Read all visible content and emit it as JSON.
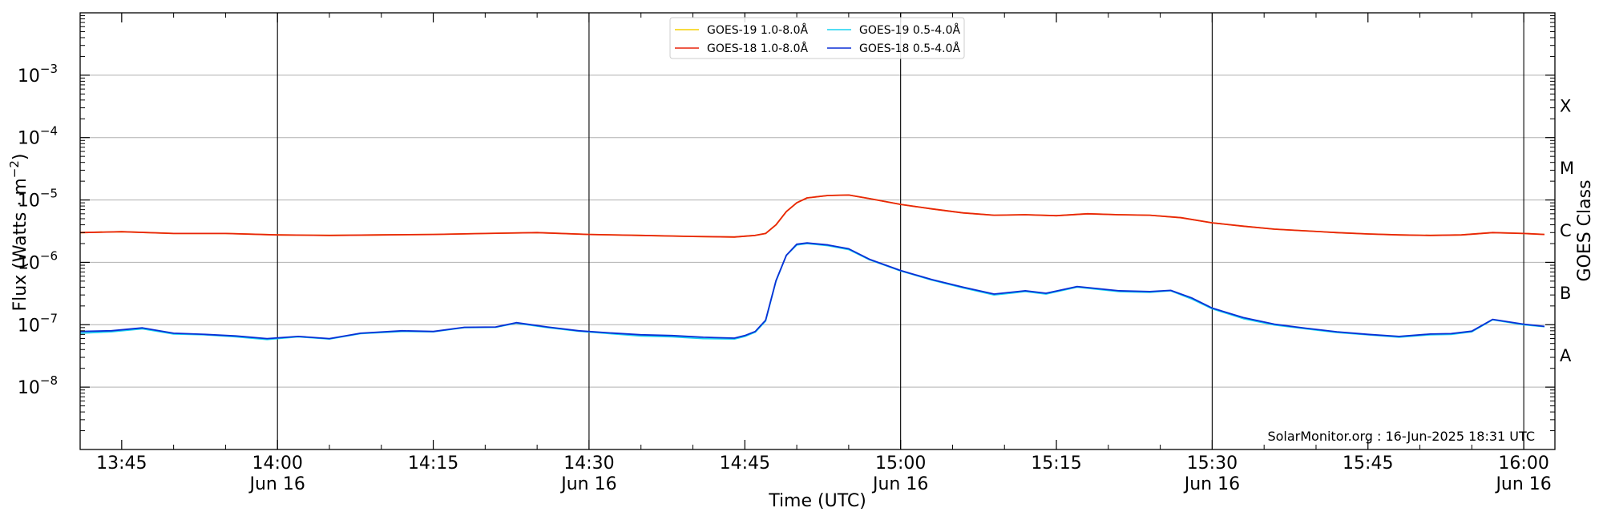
{
  "chart_data": {
    "type": "line",
    "title": "",
    "xlabel": "Time (UTC)",
    "ylabel": "Flux (Watts · m⁻²)",
    "y2label": "GOES Class",
    "yscale": "log",
    "ylim": [
      1e-09,
      0.01
    ],
    "xlim": [
      "13:41",
      "16:03"
    ],
    "grid": "horizontal at decades",
    "legend_position": "upper-center",
    "x_ticks": [
      {
        "t": "13:45",
        "label": "13:45",
        "sub": ""
      },
      {
        "t": "14:00",
        "label": "14:00",
        "sub": "Jun 16"
      },
      {
        "t": "14:15",
        "label": "14:15",
        "sub": ""
      },
      {
        "t": "14:30",
        "label": "14:30",
        "sub": "Jun 16"
      },
      {
        "t": "14:45",
        "label": "14:45",
        "sub": ""
      },
      {
        "t": "15:00",
        "label": "15:00",
        "sub": "Jun 16"
      },
      {
        "t": "15:15",
        "label": "15:15",
        "sub": ""
      },
      {
        "t": "15:30",
        "label": "15:30",
        "sub": "Jun 16"
      },
      {
        "t": "15:45",
        "label": "15:45",
        "sub": ""
      },
      {
        "t": "16:00",
        "label": "16:00",
        "sub": "Jun 16"
      }
    ],
    "vertical_lines": [
      "14:00",
      "14:30",
      "15:00",
      "15:30",
      "16:00"
    ],
    "y_ticks": [
      {
        "v": 0.001,
        "base": "10",
        "exp": "−3"
      },
      {
        "v": 0.0001,
        "base": "10",
        "exp": "−4"
      },
      {
        "v": 1e-05,
        "base": "10",
        "exp": "−5"
      },
      {
        "v": 1e-06,
        "base": "10",
        "exp": "−6"
      },
      {
        "v": 1e-07,
        "base": "10",
        "exp": "−7"
      },
      {
        "v": 1e-08,
        "base": "10",
        "exp": "−8"
      }
    ],
    "goes_classes": [
      {
        "label": "X",
        "v": 0.00032
      },
      {
        "label": "M",
        "v": 3.2e-05
      },
      {
        "label": "C",
        "v": 3.2e-06
      },
      {
        "label": "B",
        "v": 3.2e-07
      },
      {
        "label": "A",
        "v": 3.2e-08
      }
    ],
    "series": [
      {
        "name": "GOES-19 1.0-8.0Å",
        "color": "#f5d000",
        "x": [
          "13:41",
          "13:45",
          "13:50",
          "13:55",
          "14:00",
          "14:05",
          "14:10",
          "14:15",
          "14:20",
          "14:25",
          "14:30",
          "14:35",
          "14:40",
          "14:44",
          "14:46",
          "14:47",
          "14:48",
          "14:49",
          "14:50",
          "14:51",
          "14:53",
          "14:55",
          "14:57",
          "15:00",
          "15:03",
          "15:06",
          "15:09",
          "15:12",
          "15:15",
          "15:18",
          "15:21",
          "15:24",
          "15:27",
          "15:30",
          "15:33",
          "15:36",
          "15:39",
          "15:42",
          "15:45",
          "15:48",
          "15:51",
          "15:54",
          "15:57",
          "16:00",
          "16:02"
        ],
        "y": [
          3e-06,
          3.1e-06,
          2.9e-06,
          2.9e-06,
          2.75e-06,
          2.7e-06,
          2.75e-06,
          2.8e-06,
          2.9e-06,
          3e-06,
          2.8e-06,
          2.7e-06,
          2.6e-06,
          2.55e-06,
          2.7e-06,
          2.9e-06,
          4e-06,
          6.5e-06,
          9e-06,
          1.08e-05,
          1.18e-05,
          1.2e-05,
          1.05e-05,
          8.5e-06,
          7.2e-06,
          6.2e-06,
          5.7e-06,
          5.8e-06,
          5.6e-06,
          6e-06,
          5.8e-06,
          5.7e-06,
          5.2e-06,
          4.3e-06,
          3.8e-06,
          3.4e-06,
          3.2e-06,
          3e-06,
          2.85e-06,
          2.75e-06,
          2.7e-06,
          2.75e-06,
          3e-06,
          2.9e-06,
          2.8e-06
        ]
      },
      {
        "name": "GOES-18 1.0-8.0Å",
        "color": "#e8240c",
        "x": [
          "13:41",
          "13:45",
          "13:50",
          "13:55",
          "14:00",
          "14:05",
          "14:10",
          "14:15",
          "14:20",
          "14:25",
          "14:30",
          "14:35",
          "14:40",
          "14:44",
          "14:46",
          "14:47",
          "14:48",
          "14:49",
          "14:50",
          "14:51",
          "14:53",
          "14:55",
          "14:57",
          "15:00",
          "15:03",
          "15:06",
          "15:09",
          "15:12",
          "15:15",
          "15:18",
          "15:21",
          "15:24",
          "15:27",
          "15:30",
          "15:33",
          "15:36",
          "15:39",
          "15:42",
          "15:45",
          "15:48",
          "15:51",
          "15:54",
          "15:57",
          "16:00",
          "16:02"
        ],
        "y": [
          3e-06,
          3.1e-06,
          2.9e-06,
          2.9e-06,
          2.75e-06,
          2.7e-06,
          2.75e-06,
          2.8e-06,
          2.9e-06,
          3e-06,
          2.8e-06,
          2.7e-06,
          2.6e-06,
          2.55e-06,
          2.7e-06,
          2.9e-06,
          4e-06,
          6.5e-06,
          9e-06,
          1.08e-05,
          1.18e-05,
          1.2e-05,
          1.05e-05,
          8.5e-06,
          7.2e-06,
          6.2e-06,
          5.7e-06,
          5.8e-06,
          5.6e-06,
          6e-06,
          5.8e-06,
          5.7e-06,
          5.2e-06,
          4.3e-06,
          3.8e-06,
          3.4e-06,
          3.2e-06,
          3e-06,
          2.85e-06,
          2.75e-06,
          2.7e-06,
          2.75e-06,
          3e-06,
          2.9e-06,
          2.8e-06
        ]
      },
      {
        "name": "GOES-19 0.5-4.0Å",
        "color": "#19d3f0",
        "x": [
          "13:41",
          "13:44",
          "13:47",
          "13:50",
          "13:53",
          "13:56",
          "13:59",
          "14:02",
          "14:05",
          "14:08",
          "14:12",
          "14:15",
          "14:18",
          "14:21",
          "14:23",
          "14:26",
          "14:29",
          "14:32",
          "14:35",
          "14:38",
          "14:41",
          "14:44",
          "14:45",
          "14:46",
          "14:47",
          "14:48",
          "14:49",
          "14:50",
          "14:51",
          "14:53",
          "14:55",
          "14:57",
          "15:00",
          "15:03",
          "15:06",
          "15:09",
          "15:12",
          "15:14",
          "15:17",
          "15:21",
          "15:24",
          "15:26",
          "15:28",
          "15:30",
          "15:33",
          "15:36",
          "15:39",
          "15:42",
          "15:45",
          "15:48",
          "15:51",
          "15:53",
          "15:55",
          "15:57",
          "16:00",
          "16:02"
        ],
        "y": [
          7.3e-08,
          7.7e-08,
          8.6e-08,
          7.1e-08,
          6.9e-08,
          6.4e-08,
          5.8e-08,
          6.4e-08,
          5.9e-08,
          7.2e-08,
          7.8e-08,
          7.7e-08,
          9e-08,
          9.1e-08,
          1.06e-07,
          9e-08,
          7.9e-08,
          7.2e-08,
          6.6e-08,
          6.4e-08,
          6e-08,
          5.9e-08,
          6.5e-08,
          7.6e-08,
          1.15e-07,
          5e-07,
          1.3e-06,
          1.9e-06,
          2e-06,
          1.85e-06,
          1.6e-06,
          1.1e-06,
          7.3e-07,
          5.2e-07,
          3.9e-07,
          3e-07,
          3.4e-07,
          3.1e-07,
          4e-07,
          3.4e-07,
          3.3e-07,
          3.5e-07,
          2.6e-07,
          1.8e-07,
          1.25e-07,
          9.9e-08,
          8.6e-08,
          7.5e-08,
          6.9e-08,
          6.3e-08,
          6.9e-08,
          7e-08,
          7.7e-08,
          1.2e-07,
          1e-07,
          9.3e-08
        ]
      },
      {
        "name": "GOES-18 0.5-4.0Å",
        "color": "#0a2fd6",
        "x": [
          "13:41",
          "13:44",
          "13:47",
          "13:50",
          "13:53",
          "13:56",
          "13:59",
          "14:02",
          "14:05",
          "14:08",
          "14:12",
          "14:15",
          "14:18",
          "14:21",
          "14:23",
          "14:26",
          "14:29",
          "14:32",
          "14:35",
          "14:38",
          "14:41",
          "14:44",
          "14:45",
          "14:46",
          "14:47",
          "14:48",
          "14:49",
          "14:50",
          "14:51",
          "14:53",
          "14:55",
          "14:57",
          "15:00",
          "15:03",
          "15:06",
          "15:09",
          "15:12",
          "15:14",
          "15:17",
          "15:21",
          "15:24",
          "15:26",
          "15:28",
          "15:30",
          "15:33",
          "15:36",
          "15:39",
          "15:42",
          "15:45",
          "15:48",
          "15:51",
          "15:53",
          "15:55",
          "15:57",
          "16:00",
          "16:02"
        ],
        "y": [
          7.8e-08,
          8e-08,
          8.9e-08,
          7.3e-08,
          7e-08,
          6.6e-08,
          6e-08,
          6.5e-08,
          6e-08,
          7.3e-08,
          8e-08,
          7.8e-08,
          9.1e-08,
          9.2e-08,
          1.08e-07,
          9.2e-08,
          8e-08,
          7.4e-08,
          6.9e-08,
          6.7e-08,
          6.3e-08,
          6.1e-08,
          6.7e-08,
          7.8e-08,
          1.18e-07,
          5.1e-07,
          1.3e-06,
          1.95e-06,
          2.05e-06,
          1.9e-06,
          1.65e-06,
          1.12e-06,
          7.4e-07,
          5.3e-07,
          4e-07,
          3.1e-07,
          3.5e-07,
          3.2e-07,
          4.1e-07,
          3.5e-07,
          3.4e-07,
          3.55e-07,
          2.7e-07,
          1.85e-07,
          1.3e-07,
          1.02e-07,
          8.8e-08,
          7.7e-08,
          7e-08,
          6.5e-08,
          7.1e-08,
          7.2e-08,
          7.9e-08,
          1.22e-07,
          1.02e-07,
          9.4e-08
        ]
      }
    ],
    "legend_order": [
      0,
      2,
      1,
      3
    ],
    "annotation": "SolarMonitor.org : 16-Jun-2025 18:31 UTC"
  }
}
